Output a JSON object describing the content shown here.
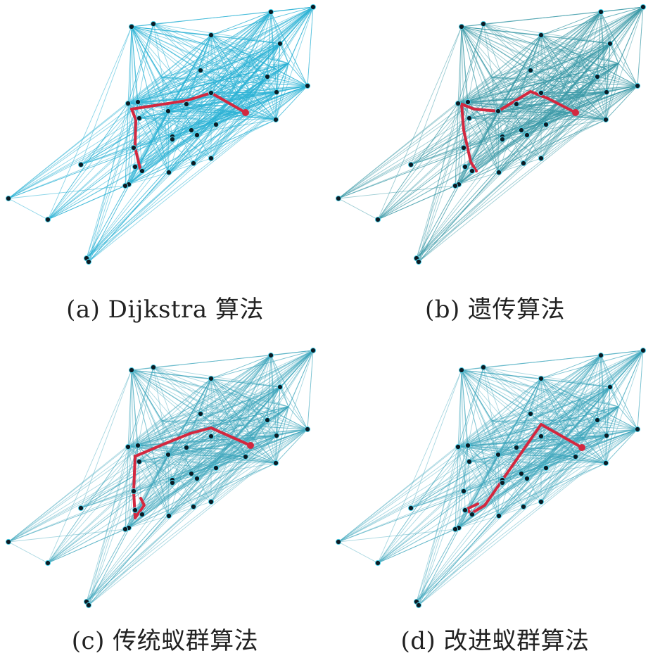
{
  "panels": [
    {
      "key": "a",
      "caption": "(a) Dijkstra 算法",
      "edge_color": "#2cb3d6",
      "edge_opacity": 0.55,
      "path": [
        3,
        4,
        7,
        5,
        8,
        9,
        10,
        11,
        12,
        13
      ]
    },
    {
      "key": "b",
      "caption": "(b) 遗传算法",
      "edge_color": "#3a9aa8",
      "edge_opacity": 0.5,
      "path": [
        3,
        4,
        7,
        5,
        8,
        9,
        10,
        11,
        12,
        13
      ]
    },
    {
      "key": "c",
      "caption": "(c) 传统蚁群算法",
      "edge_color": "#3fa7bd",
      "edge_opacity": 0.45,
      "path": [
        13,
        12,
        11,
        10,
        9,
        8,
        15,
        3,
        4,
        2
      ]
    },
    {
      "key": "d",
      "caption": "(d) 改进蚁群算法",
      "edge_color": "#3fa7bd",
      "edge_opacity": 0.45,
      "path": [
        13,
        12,
        4,
        2,
        3
      ]
    }
  ],
  "colors": {
    "path": "#d3283f",
    "node": "#0d1b24",
    "node_ring": "#4fd0e8"
  }
}
